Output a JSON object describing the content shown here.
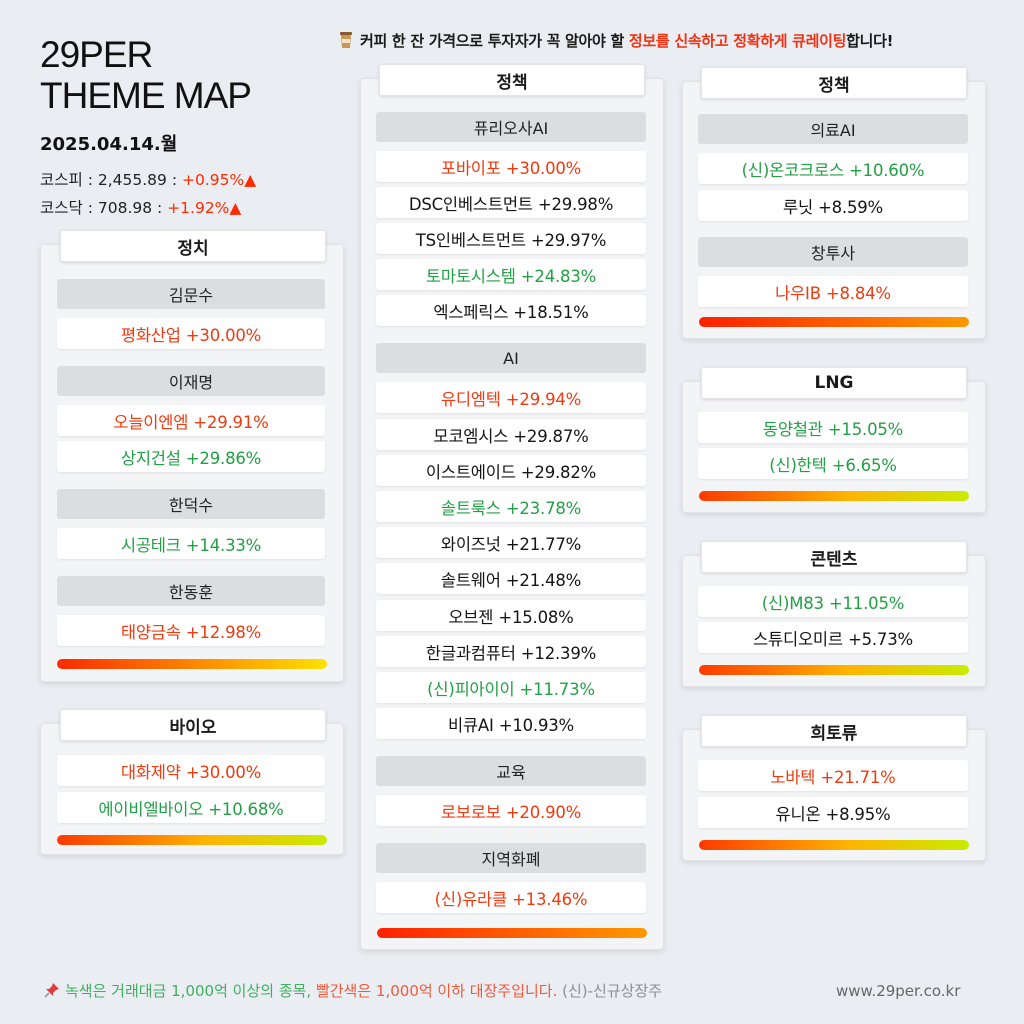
{
  "header": {
    "brand_line1": "29PER",
    "brand_line2": "THEME MAP",
    "date": "2025.04.14.월",
    "kospi": {
      "label": "코스피 : ",
      "value": "2,455.89",
      "sep": " : ",
      "change": "+0.95%▲"
    },
    "kosdaq": {
      "label": "코스닥 : ",
      "value": "708.98",
      "sep": " : ",
      "change": "+1.92%▲"
    },
    "tagline_part1": "커피 한 잔 가격으로 투자자가 꼭 알아야 할 ",
    "tagline_highlight": "정보를 신속하고 정확하게 큐레이팅",
    "tagline_part2": "합니다!"
  },
  "panels": {
    "politics": {
      "title": "정치",
      "groups": [
        {
          "name": "김문수",
          "stocks": [
            {
              "text": "평화산업 +30.00%",
              "color": "red"
            }
          ]
        },
        {
          "name": "이재명",
          "stocks": [
            {
              "text": "오늘이엔엠 +29.91%",
              "color": "red"
            },
            {
              "text": "상지건설 +29.86%",
              "color": "green"
            }
          ]
        },
        {
          "name": "한덕수",
          "stocks": [
            {
              "text": "시공테크 +14.33%",
              "color": "green"
            }
          ]
        },
        {
          "name": "한동훈",
          "stocks": [
            {
              "text": "태양금속 +12.98%",
              "color": "red"
            }
          ]
        }
      ]
    },
    "bio": {
      "title": "바이오",
      "stocks": [
        {
          "text": "대화제약 +30.00%",
          "color": "red"
        },
        {
          "text": "에이비엘바이오 +10.68%",
          "color": "green"
        }
      ]
    },
    "policy_mid": {
      "title": "정책",
      "groups": [
        {
          "name": "퓨리오사AI",
          "stocks": [
            {
              "text": "포바이포 +30.00%",
              "color": "red"
            },
            {
              "text": "DSC인베스트먼트 +29.98%",
              "color": "black"
            },
            {
              "text": "TS인베스트먼트 +29.97%",
              "color": "black"
            },
            {
              "text": "토마토시스템 +24.83%",
              "color": "green"
            },
            {
              "text": "엑스페릭스 +18.51%",
              "color": "black"
            }
          ]
        },
        {
          "name": "AI",
          "stocks": [
            {
              "text": "유디엠텍 +29.94%",
              "color": "red"
            },
            {
              "text": "모코엠시스 +29.87%",
              "color": "black"
            },
            {
              "text": "이스트에이드 +29.82%",
              "color": "black"
            },
            {
              "text": "솔트룩스 +23.78%",
              "color": "green"
            },
            {
              "text": "와이즈넛 +21.77%",
              "color": "black"
            },
            {
              "text": "솔트웨어 +21.48%",
              "color": "black"
            },
            {
              "text": "오브젠 +15.08%",
              "color": "black"
            },
            {
              "text": "한글과컴퓨터 +12.39%",
              "color": "black"
            },
            {
              "text": "(신)피아이이 +11.73%",
              "color": "green"
            },
            {
              "text": "비큐AI +10.93%",
              "color": "black"
            }
          ]
        },
        {
          "name": "교육",
          "stocks": [
            {
              "text": "로보로보 +20.90%",
              "color": "red"
            }
          ]
        },
        {
          "name": "지역화폐",
          "stocks": [
            {
              "text": "(신)유라클 +13.46%",
              "color": "red"
            }
          ]
        }
      ]
    },
    "policy_right": {
      "title": "정책",
      "groups": [
        {
          "name": "의료AI",
          "stocks": [
            {
              "text": "(신)온코크로스 +10.60%",
              "color": "green"
            },
            {
              "text": "루닛 +8.59%",
              "color": "black"
            }
          ]
        },
        {
          "name": "창투사",
          "stocks": [
            {
              "text": "나우IB +8.84%",
              "color": "red"
            }
          ]
        }
      ]
    },
    "lng": {
      "title": "LNG",
      "stocks": [
        {
          "text": "동양철관 +15.05%",
          "color": "green"
        },
        {
          "text": "(신)한텍 +6.65%",
          "color": "green"
        }
      ]
    },
    "contents": {
      "title": "콘텐츠",
      "stocks": [
        {
          "text": "(신)M83 +11.05%",
          "color": "green"
        },
        {
          "text": "스튜디오미르 +5.73%",
          "color": "black"
        }
      ]
    },
    "rare_earth": {
      "title": "희토류",
      "stocks": [
        {
          "text": "노바텍 +21.71%",
          "color": "red"
        },
        {
          "text": "유니온 +8.95%",
          "color": "black"
        }
      ]
    }
  },
  "footer": {
    "note_green": "녹색은 거래대금 1,000억 이상의 종목, ",
    "note_red": "빨간색은 1,000억 이하 대장주입니다.",
    "note_new": " (신)-신규상장주",
    "site": "www.29per.co.kr"
  },
  "colors": {
    "red": "#f03a10",
    "green": "#22a045",
    "black": "#151515",
    "background": "#eaedf2"
  }
}
